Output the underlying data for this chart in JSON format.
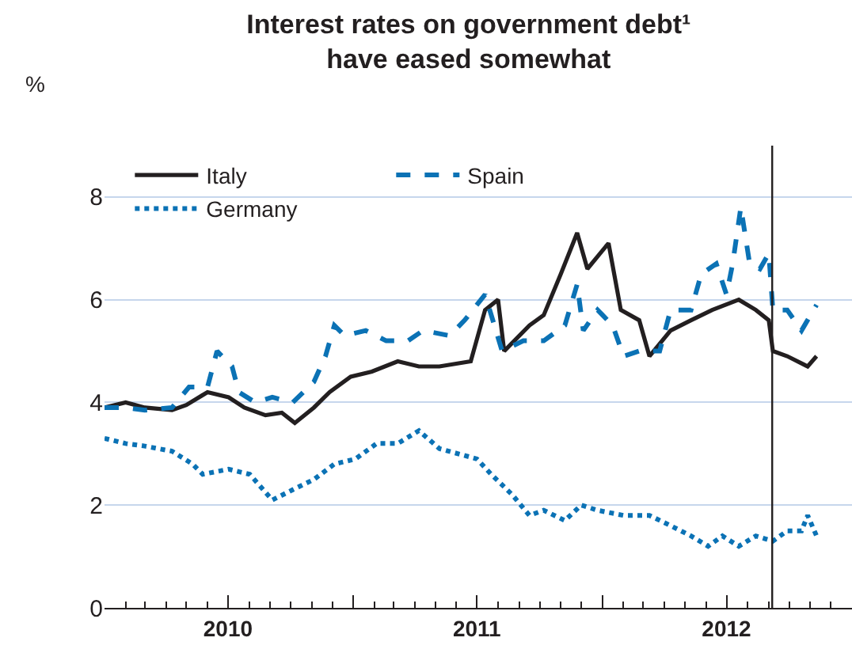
{
  "chart_data": {
    "type": "line",
    "title": "Interest rates on government debt¹\nhave eased somewhat",
    "ylabel": "%",
    "xlim": [
      "2010-01-01",
      "2013-01-01"
    ],
    "xticks": [
      {
        "value": "2010-07-01",
        "label": "2010"
      },
      {
        "value": "2011-01-01",
        "label": null
      },
      {
        "value": "2011-07-01",
        "label": "2011"
      },
      {
        "value": "2012-01-01",
        "label": null
      },
      {
        "value": "2012-07-01",
        "label": "2012"
      }
    ],
    "ylim": [
      0,
      9
    ],
    "yticks": [
      0,
      2,
      4,
      6,
      8
    ],
    "grid": "y",
    "legend": "top left",
    "marker": "none",
    "ref_lines": [
      {
        "axis": "x",
        "value": "2012-09-06",
        "label": null,
        "color": "#231f20"
      }
    ],
    "series": [
      {
        "name": "Italy",
        "color": "#231f20",
        "line_style": "solid",
        "x": [
          "2010-01-01",
          "2010-02-01",
          "2010-03-01",
          "2010-04-10",
          "2010-05-01",
          "2010-06-01",
          "2010-07-02",
          "2010-07-25",
          "2010-08-25",
          "2010-09-18",
          "2010-10-07",
          "2010-11-04",
          "2010-11-27",
          "2010-12-28",
          "2011-01-28",
          "2011-03-07",
          "2011-04-07",
          "2011-05-07",
          "2011-06-22",
          "2011-07-13",
          "2011-08-01",
          "2011-08-10",
          "2011-09-16",
          "2011-10-07",
          "2011-11-01",
          "2011-11-25",
          "2011-12-10",
          "2012-01-10",
          "2012-01-28",
          "2012-02-24",
          "2012-03-10",
          "2012-04-10",
          "2012-05-10",
          "2012-06-10",
          "2012-07-19",
          "2012-08-13",
          "2012-09-01",
          "2012-09-07",
          "2012-09-28",
          "2012-10-28",
          "2012-11-10"
        ],
        "values": [
          3.9,
          4.0,
          3.9,
          3.85,
          3.95,
          4.2,
          4.1,
          3.9,
          3.75,
          3.8,
          3.6,
          3.9,
          4.2,
          4.5,
          4.6,
          4.8,
          4.7,
          4.7,
          4.8,
          5.8,
          6.0,
          5.0,
          5.5,
          5.7,
          6.5,
          7.3,
          6.6,
          7.1,
          5.8,
          5.6,
          4.9,
          5.4,
          5.6,
          5.8,
          6.0,
          5.8,
          5.6,
          5.0,
          4.9,
          4.7,
          4.9
        ]
      },
      {
        "name": "Spain",
        "color": "#0b72b5",
        "line_style": "dashed",
        "x": [
          "2010-01-01",
          "2010-02-01",
          "2010-03-01",
          "2010-04-10",
          "2010-05-05",
          "2010-06-01",
          "2010-06-15",
          "2010-07-07",
          "2010-07-17",
          "2010-08-10",
          "2010-09-04",
          "2010-10-04",
          "2010-11-04",
          "2010-11-21",
          "2010-12-04",
          "2010-12-19",
          "2011-01-19",
          "2011-02-18",
          "2011-03-22",
          "2011-04-13",
          "2011-05-22",
          "2011-06-13",
          "2011-07-13",
          "2011-08-07",
          "2011-09-07",
          "2011-10-07",
          "2011-11-07",
          "2011-11-25",
          "2011-12-04",
          "2011-12-25",
          "2012-01-16",
          "2012-02-01",
          "2012-02-24",
          "2012-03-25",
          "2012-04-10",
          "2012-05-10",
          "2012-05-25",
          "2012-06-16",
          "2012-07-01",
          "2012-07-10",
          "2012-07-22",
          "2012-08-04",
          "2012-08-19",
          "2012-09-01",
          "2012-09-07",
          "2012-09-28",
          "2012-10-19",
          "2012-11-10"
        ],
        "values": [
          3.9,
          3.9,
          3.85,
          3.9,
          4.3,
          4.3,
          5.0,
          4.7,
          4.2,
          4.0,
          4.1,
          4.0,
          4.4,
          4.9,
          5.5,
          5.3,
          5.4,
          5.2,
          5.2,
          5.4,
          5.3,
          5.6,
          6.1,
          5.0,
          5.2,
          5.2,
          5.5,
          6.3,
          5.4,
          5.8,
          5.5,
          4.9,
          5.0,
          5.0,
          5.8,
          5.8,
          6.5,
          6.7,
          6.1,
          6.7,
          7.8,
          6.7,
          6.6,
          6.9,
          5.8,
          5.8,
          5.4,
          5.9
        ]
      },
      {
        "name": "Germany",
        "color": "#0b72b5",
        "line_style": "dotted",
        "x": [
          "2010-01-01",
          "2010-02-01",
          "2010-03-01",
          "2010-04-10",
          "2010-05-10",
          "2010-05-25",
          "2010-07-02",
          "2010-08-02",
          "2010-09-04",
          "2010-10-04",
          "2010-11-04",
          "2010-12-04",
          "2011-01-04",
          "2011-02-04",
          "2011-03-07",
          "2011-04-07",
          "2011-05-07",
          "2011-07-01",
          "2011-07-22",
          "2011-08-22",
          "2011-09-16",
          "2011-10-07",
          "2011-11-07",
          "2011-12-01",
          "2011-12-25",
          "2012-02-01",
          "2012-03-10",
          "2012-04-10",
          "2012-05-10",
          "2012-06-04",
          "2012-06-25",
          "2012-07-19",
          "2012-08-13",
          "2012-09-07",
          "2012-09-28",
          "2012-10-19",
          "2012-10-28",
          "2012-11-10"
        ],
        "values": [
          3.3,
          3.2,
          3.15,
          3.05,
          2.8,
          2.6,
          2.7,
          2.6,
          2.1,
          2.3,
          2.5,
          2.8,
          2.9,
          3.2,
          3.2,
          3.45,
          3.1,
          2.9,
          2.6,
          2.2,
          1.8,
          1.9,
          1.7,
          2.0,
          1.9,
          1.8,
          1.8,
          1.6,
          1.4,
          1.2,
          1.4,
          1.2,
          1.4,
          1.3,
          1.5,
          1.5,
          1.8,
          1.4
        ]
      }
    ]
  }
}
